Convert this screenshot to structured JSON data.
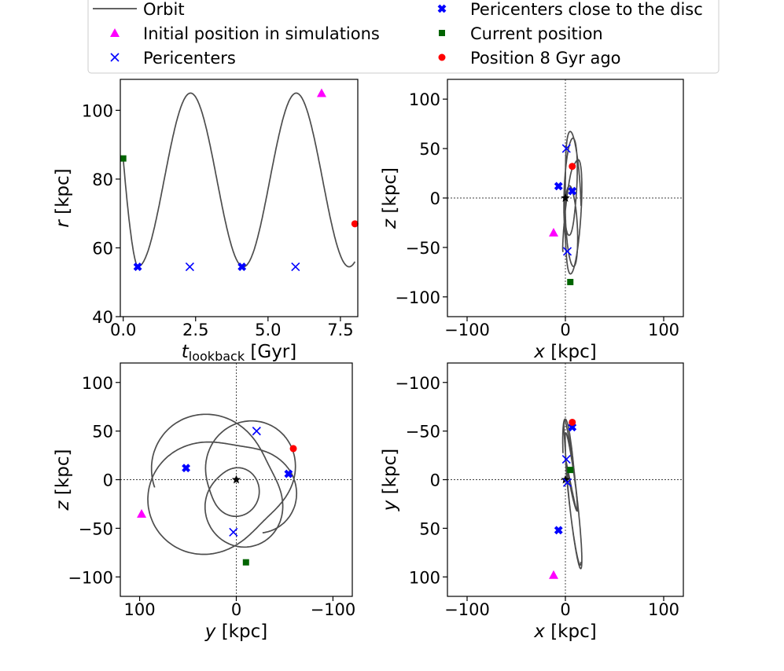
{
  "legend": {
    "entries": [
      {
        "key": "orbit",
        "label": "Orbit",
        "marker": "line",
        "color": "#4d4d4d"
      },
      {
        "key": "initial",
        "label": "Initial position in simulations",
        "marker": "triangle",
        "color": "#ff00ff"
      },
      {
        "key": "peri",
        "label": "Pericenters",
        "marker": "x",
        "color": "#0000ff"
      },
      {
        "key": "peri_disc",
        "label": "Pericenters close to the disc",
        "marker": "X",
        "color": "#0000ff"
      },
      {
        "key": "current",
        "label": "Current position",
        "marker": "square",
        "color": "#006400"
      },
      {
        "key": "ago8",
        "label": "Position 8 Gyr ago",
        "marker": "circle",
        "color": "#ff0000"
      }
    ]
  },
  "chart_data": [
    {
      "type": "line",
      "panel": "top-left",
      "xlabel_main": "t",
      "xlabel_sub": "lookback",
      "xlabel_unit": " [Gyr]",
      "ylabel_main": "r",
      "ylabel_unit": " [kpc]",
      "xlim": [
        -0.1,
        8.1
      ],
      "ylim": [
        40,
        109
      ],
      "xticks": [
        0,
        2.5,
        5,
        7.5
      ],
      "xtick_labels": [
        "0.0",
        "2.5",
        "5.0",
        "7.5"
      ],
      "yticks": [
        40,
        60,
        80,
        100
      ],
      "ytick_labels": [
        "40",
        "60",
        "80",
        "100"
      ],
      "series": [
        {
          "name": "Orbit",
          "period": 3.65,
          "t_start": 0,
          "t_end": 8.0
        }
      ],
      "markers": [
        {
          "kind": "square",
          "x": 0.0,
          "y": 86
        },
        {
          "kind": "X",
          "x": 0.5,
          "y": 54.5
        },
        {
          "kind": "x",
          "x": 2.3,
          "y": 54.5
        },
        {
          "kind": "X",
          "x": 4.1,
          "y": 54.5
        },
        {
          "kind": "x",
          "x": 5.95,
          "y": 54.5
        },
        {
          "kind": "triangle",
          "x": 6.85,
          "y": 105
        },
        {
          "kind": "circle",
          "x": 8.0,
          "y": 67
        }
      ]
    },
    {
      "type": "line",
      "panel": "top-right",
      "xlabel_main": "x",
      "xlabel_unit": " [kpc]",
      "ylabel_main": "z",
      "ylabel_unit": " [kpc]",
      "xlim": [
        -120,
        120
      ],
      "ylim": [
        -120,
        120
      ],
      "invert_y": false,
      "xticks": [
        -100,
        0,
        100
      ],
      "xtick_labels": [
        "−100",
        "0",
        "100"
      ],
      "yticks": [
        -100,
        -50,
        0,
        50,
        100
      ],
      "ytick_labels": [
        "−100",
        "−50",
        "0",
        "50",
        "100"
      ],
      "series": [
        {
          "name": "Orbit"
        }
      ],
      "markers": [
        {
          "kind": "star",
          "x": 0,
          "y": 0
        },
        {
          "kind": "square",
          "x": 5,
          "y": -85
        },
        {
          "kind": "X",
          "x": -7,
          "y": 12
        },
        {
          "kind": "X",
          "x": 7,
          "y": 7
        },
        {
          "kind": "x",
          "x": 1,
          "y": 50
        },
        {
          "kind": "x",
          "x": 2,
          "y": -54
        },
        {
          "kind": "triangle",
          "x": -12,
          "y": -35
        },
        {
          "kind": "circle",
          "x": 7,
          "y": 32
        }
      ]
    },
    {
      "type": "line",
      "panel": "bottom-left",
      "xlabel_main": "y",
      "xlabel_unit": " [kpc]",
      "ylabel_main": "z",
      "ylabel_unit": " [kpc]",
      "xlim": [
        120,
        -120
      ],
      "ylim": [
        -120,
        120
      ],
      "xticks": [
        100,
        0,
        -100
      ],
      "xtick_labels": [
        "100",
        "0",
        "−100"
      ],
      "yticks": [
        -100,
        -50,
        0,
        50,
        100
      ],
      "ytick_labels": [
        "−100",
        "−50",
        "0",
        "50",
        "100"
      ],
      "series": [
        {
          "name": "Orbit"
        }
      ],
      "markers": [
        {
          "kind": "star",
          "x": 0,
          "y": 0
        },
        {
          "kind": "square",
          "x": -10,
          "y": -85
        },
        {
          "kind": "X",
          "x": 52,
          "y": 12
        },
        {
          "kind": "X",
          "x": -54,
          "y": 6
        },
        {
          "kind": "x",
          "x": -21,
          "y": 50
        },
        {
          "kind": "x",
          "x": 3,
          "y": -54
        },
        {
          "kind": "triangle",
          "x": 98,
          "y": -35
        },
        {
          "kind": "circle",
          "x": -59,
          "y": 32
        }
      ]
    },
    {
      "type": "line",
      "panel": "bottom-right",
      "xlabel_main": "x",
      "xlabel_unit": " [kpc]",
      "ylabel_main": "y",
      "ylabel_unit": " [kpc]",
      "xlim": [
        -120,
        120
      ],
      "ylim": [
        120,
        -120
      ],
      "xticks": [
        -100,
        0,
        100
      ],
      "xtick_labels": [
        "−100",
        "0",
        "100"
      ],
      "yticks": [
        -100,
        -50,
        0,
        50,
        100
      ],
      "ytick_labels": [
        "−100",
        "−50",
        "0",
        "50",
        "100"
      ],
      "series": [
        {
          "name": "Orbit"
        }
      ],
      "markers": [
        {
          "kind": "star",
          "x": 0,
          "y": 0
        },
        {
          "kind": "square",
          "x": 5,
          "y": -10
        },
        {
          "kind": "X",
          "x": -7,
          "y": 52
        },
        {
          "kind": "X",
          "x": 7,
          "y": -54
        },
        {
          "kind": "x",
          "x": 1,
          "y": -21
        },
        {
          "kind": "x",
          "x": 2,
          "y": 3
        },
        {
          "kind": "triangle",
          "x": -12,
          "y": 98
        },
        {
          "kind": "circle",
          "x": 7,
          "y": -59
        }
      ]
    }
  ]
}
